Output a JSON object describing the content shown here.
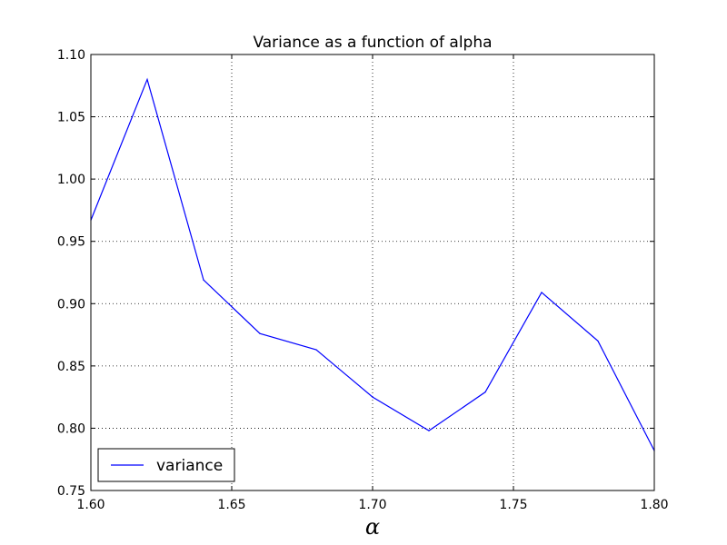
{
  "chart_data": {
    "type": "line",
    "title": "Variance as a function of alpha",
    "xlabel": "α",
    "ylabel": "",
    "xlim": [
      1.6,
      1.8
    ],
    "ylim": [
      0.75,
      1.1
    ],
    "xticks": [
      "1.60",
      "1.65",
      "1.70",
      "1.75",
      "1.80"
    ],
    "yticks": [
      "0.75",
      "0.80",
      "0.85",
      "0.90",
      "0.95",
      "1.00",
      "1.05",
      "1.10"
    ],
    "grid": true,
    "legend": {
      "placement": "lower-left"
    },
    "x": [
      1.6,
      1.62,
      1.64,
      1.66,
      1.68,
      1.7,
      1.72,
      1.74,
      1.76,
      1.78,
      1.8
    ],
    "series": [
      {
        "name": "variance",
        "color": "#0000ff",
        "values": [
          0.967,
          1.08,
          0.919,
          0.876,
          0.863,
          0.825,
          0.798,
          0.829,
          0.909,
          0.87,
          0.782
        ]
      }
    ]
  }
}
